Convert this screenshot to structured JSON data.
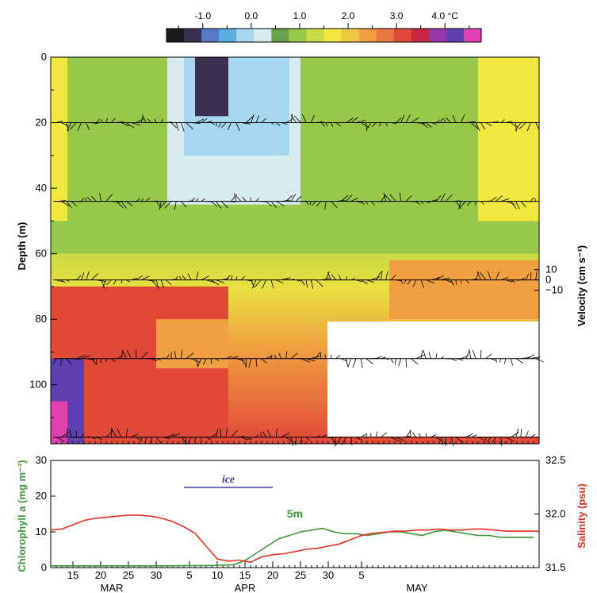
{
  "colors": {
    "temperature_scale": [
      "#1a1a1a",
      "#3a3050",
      "#5a78c8",
      "#5aaee0",
      "#a8d8f0",
      "#d8ecf0",
      "#6aa04a",
      "#98c84a",
      "#c8dc48",
      "#f0e840",
      "#f0c840",
      "#f0a040",
      "#e87840",
      "#e04838",
      "#c82848",
      "#9838a8",
      "#6040b0",
      "#e040b0"
    ],
    "chlorophyll": "#3a9a3a",
    "salinity": "#e83020",
    "ice": "#4040a0",
    "vectors": "#000000"
  },
  "chart_data": [
    {
      "type": "heatmap",
      "colorbar": {
        "ticks": [
          "-1.0",
          "0.0",
          "1.0",
          "2.0",
          "3.0",
          "4.0 °C"
        ],
        "tick_values": [
          -1.0,
          0.0,
          1.0,
          2.0,
          3.0,
          4.0
        ],
        "range": [
          -1.75,
          4.75
        ],
        "unit": "°C"
      },
      "ylabel": "Depth (m)",
      "y_ticks": [
        "0",
        "20",
        "40",
        "60",
        "80",
        "100"
      ],
      "ylim": [
        0,
        118
      ],
      "ylim_reversed": true,
      "x_range_days": [
        11,
        99
      ],
      "velocity_axis": {
        "label": "Velocity (cm s⁻¹)",
        "ticks": [
          "10",
          "0",
          "−10"
        ],
        "tick_values": [
          10,
          0,
          -10
        ]
      },
      "vector_depths_m": [
        20,
        44,
        68,
        92,
        116
      ],
      "shallow_zone_label_depth_m": [
        0,
        80
      ],
      "regions": [
        {
          "name": "near-surface cold intrusion",
          "start_day": 37,
          "end_day": 42,
          "depth_m": [
            0,
            18
          ],
          "temp": -1.5
        },
        {
          "name": "cold band",
          "start_day": 33,
          "end_day": 55,
          "depth_m": [
            0,
            45
          ],
          "temp": 0.0
        },
        {
          "name": "bottom warm water",
          "start_day": 11,
          "end_day": 43,
          "depth_m": [
            70,
            116
          ],
          "temp": 3.2
        },
        {
          "name": "deep warmest",
          "start_day": 11,
          "end_day": 17,
          "depth_m": [
            90,
            116
          ],
          "temp": 4.2
        }
      ]
    },
    {
      "type": "line",
      "ylabel_left": "Chlorophyll a (mg m⁻³)",
      "ylabel_right": "Salinity (psu)",
      "y_left_ticks": [
        "0",
        "10",
        "20",
        "30"
      ],
      "y_left_range": [
        0,
        30
      ],
      "y_right_ticks": [
        "31.5",
        "32.0",
        "32.5"
      ],
      "y_right_range": [
        31.5,
        32.5
      ],
      "x_ticks": [
        "15",
        "20",
        "25",
        "30",
        "5",
        "10",
        "15",
        "20",
        "25",
        "30",
        "5"
      ],
      "x_tick_days": [
        15,
        20,
        25,
        30,
        36,
        41,
        46,
        51,
        56,
        61,
        67
      ],
      "month_labels": [
        "MAR",
        "APR",
        "MAY"
      ],
      "month_label_days": [
        22,
        46,
        77
      ],
      "x_range_days": [
        11,
        99
      ],
      "annotations": [
        {
          "text": "ice",
          "color": "#4040a0",
          "start_day": 35,
          "end_day": 51
        },
        {
          "text": "5m",
          "color": "#3a9a3a",
          "day": 55,
          "value": 14
        }
      ],
      "series": [
        {
          "name": "Chlorophyll a",
          "axis": "left",
          "x": [
            11,
            20,
            30,
            40,
            44,
            46,
            48,
            50,
            52,
            54,
            56,
            58,
            60,
            62,
            64,
            66,
            68,
            70,
            72,
            74,
            76,
            78,
            80,
            82,
            84,
            86,
            88,
            90,
            92,
            94,
            96,
            98
          ],
          "values": [
            0.5,
            0.5,
            0.5,
            0.6,
            0.8,
            2,
            4,
            6,
            8,
            9,
            10,
            10.5,
            11,
            10,
            9.5,
            9.5,
            9,
            9.5,
            10,
            10,
            9.5,
            9,
            10,
            10.5,
            10,
            9.5,
            9,
            9,
            8.5,
            8.5,
            8.5,
            8.5
          ]
        },
        {
          "name": "Salinity",
          "axis": "right",
          "x": [
            11,
            13,
            15,
            17,
            19,
            21,
            23,
            25,
            27,
            29,
            31,
            33,
            35,
            37,
            39,
            41,
            43,
            45,
            47,
            49,
            51,
            53,
            55,
            57,
            59,
            61,
            63,
            65,
            67,
            69,
            71,
            73,
            75,
            77,
            79,
            81,
            83,
            85,
            87,
            89,
            91,
            93,
            95,
            97,
            99
          ],
          "values": [
            31.85,
            31.86,
            31.9,
            31.94,
            31.96,
            31.97,
            31.98,
            31.99,
            31.99,
            31.98,
            31.96,
            31.93,
            31.88,
            31.82,
            31.7,
            31.58,
            31.56,
            31.57,
            31.55,
            31.6,
            31.62,
            31.63,
            31.65,
            31.67,
            31.68,
            31.7,
            31.72,
            31.76,
            31.8,
            31.82,
            31.83,
            31.84,
            31.84,
            31.85,
            31.85,
            31.86,
            31.85,
            31.85,
            31.86,
            31.86,
            31.85,
            31.84,
            31.84,
            31.84,
            31.84
          ]
        }
      ]
    }
  ]
}
